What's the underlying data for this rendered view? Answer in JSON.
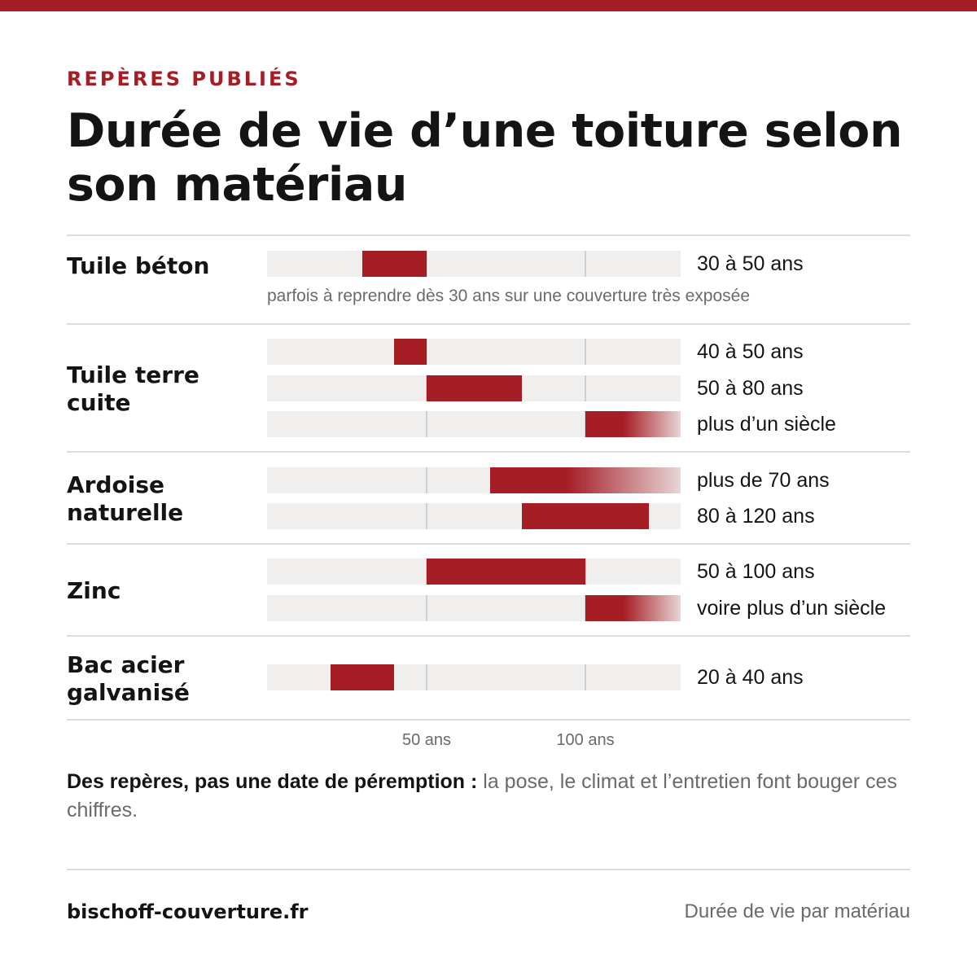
{
  "eyebrow": "REPÈRES PUBLIÉS",
  "title": "Durée de vie d’une toiture selon son matériau",
  "colors": {
    "accent": "#a51d25",
    "track": "#f1efee",
    "grid": "#cfcfcf"
  },
  "chart_data": {
    "type": "bar",
    "orientation": "horizontal-range",
    "x_ticks": [
      {
        "value": 50,
        "label": "50 ans"
      },
      {
        "value": 100,
        "label": "100 ans"
      }
    ],
    "xlim": [
      0,
      130
    ],
    "groups": [
      {
        "material": "Tuile béton",
        "note": "parfois à reprendre dès 30 ans sur une couverture très exposée",
        "ranges": [
          {
            "start": 30,
            "end": 50,
            "label": "30 à 50 ans",
            "open_ended": false
          }
        ]
      },
      {
        "material": "Tuile terre cuite",
        "ranges": [
          {
            "start": 40,
            "end": 50,
            "label": "40 à 50 ans",
            "open_ended": false
          },
          {
            "start": 50,
            "end": 80,
            "label": "50 à 80 ans",
            "open_ended": false
          },
          {
            "start": 100,
            "end": null,
            "label": "plus d’un siècle",
            "open_ended": true
          }
        ]
      },
      {
        "material": "Ardoise naturelle",
        "ranges": [
          {
            "start": 70,
            "end": null,
            "label": "plus de 70 ans",
            "open_ended": true
          },
          {
            "start": 80,
            "end": 120,
            "label": "80 à 120 ans",
            "open_ended": false
          }
        ]
      },
      {
        "material": "Zinc",
        "ranges": [
          {
            "start": 50,
            "end": 100,
            "label": "50 à 100 ans",
            "open_ended": false
          },
          {
            "start": 100,
            "end": null,
            "label": "voire plus d’un siècle",
            "open_ended": true
          }
        ]
      },
      {
        "material": "Bac acier galvanisé",
        "ranges": [
          {
            "start": 20,
            "end": 40,
            "label": "20 à 40 ans",
            "open_ended": false
          }
        ]
      }
    ]
  },
  "footnote": {
    "bold": "Des repères, pas une date de péremption :",
    "text": " la pose, le climat et l’entretien font bouger ces chiffres."
  },
  "footer": {
    "site": "bischoff-couverture.fr",
    "caption": "Durée de vie par matériau"
  }
}
